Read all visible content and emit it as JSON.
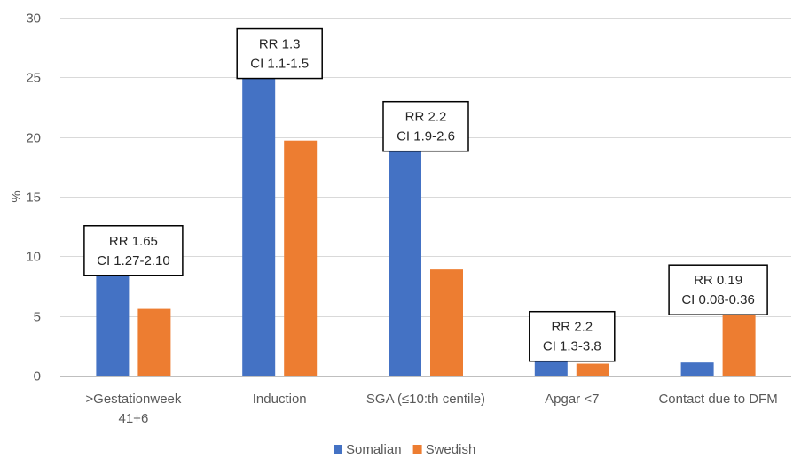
{
  "chart_data": {
    "type": "bar",
    "ylabel": "%",
    "ylim": [
      0,
      30
    ],
    "yticks": [
      0,
      5,
      10,
      15,
      20,
      25,
      30
    ],
    "grid": true,
    "legend_position": "bottom",
    "categories": [
      [
        ">Gestationweek",
        "41+6"
      ],
      [
        "Induction"
      ],
      [
        "SGA (≤10:th centile)"
      ],
      [
        "Apgar <7"
      ],
      [
        "Contact due to DFM"
      ]
    ],
    "series": [
      {
        "name": "Somalian",
        "color": "#4472C4",
        "values": [
          9.3,
          25.8,
          19.7,
          2.1,
          1.1
        ]
      },
      {
        "name": "Swedish",
        "color": "#ED7D31",
        "values": [
          5.6,
          19.7,
          8.9,
          1.0,
          6.0
        ]
      }
    ],
    "annotations": [
      {
        "category_index": 0,
        "lines": [
          "RR 1.65",
          "CI 1.27-2.10"
        ]
      },
      {
        "category_index": 1,
        "lines": [
          "RR 1.3",
          "CI 1.1-1.5"
        ]
      },
      {
        "category_index": 2,
        "lines": [
          "RR 2.2",
          "CI 1.9-2.6"
        ]
      },
      {
        "category_index": 3,
        "lines": [
          "RR 2.2",
          "CI 1.3-3.8"
        ]
      },
      {
        "category_index": 4,
        "lines": [
          "RR 0.19",
          "CI 0.08-0.36"
        ]
      }
    ]
  }
}
